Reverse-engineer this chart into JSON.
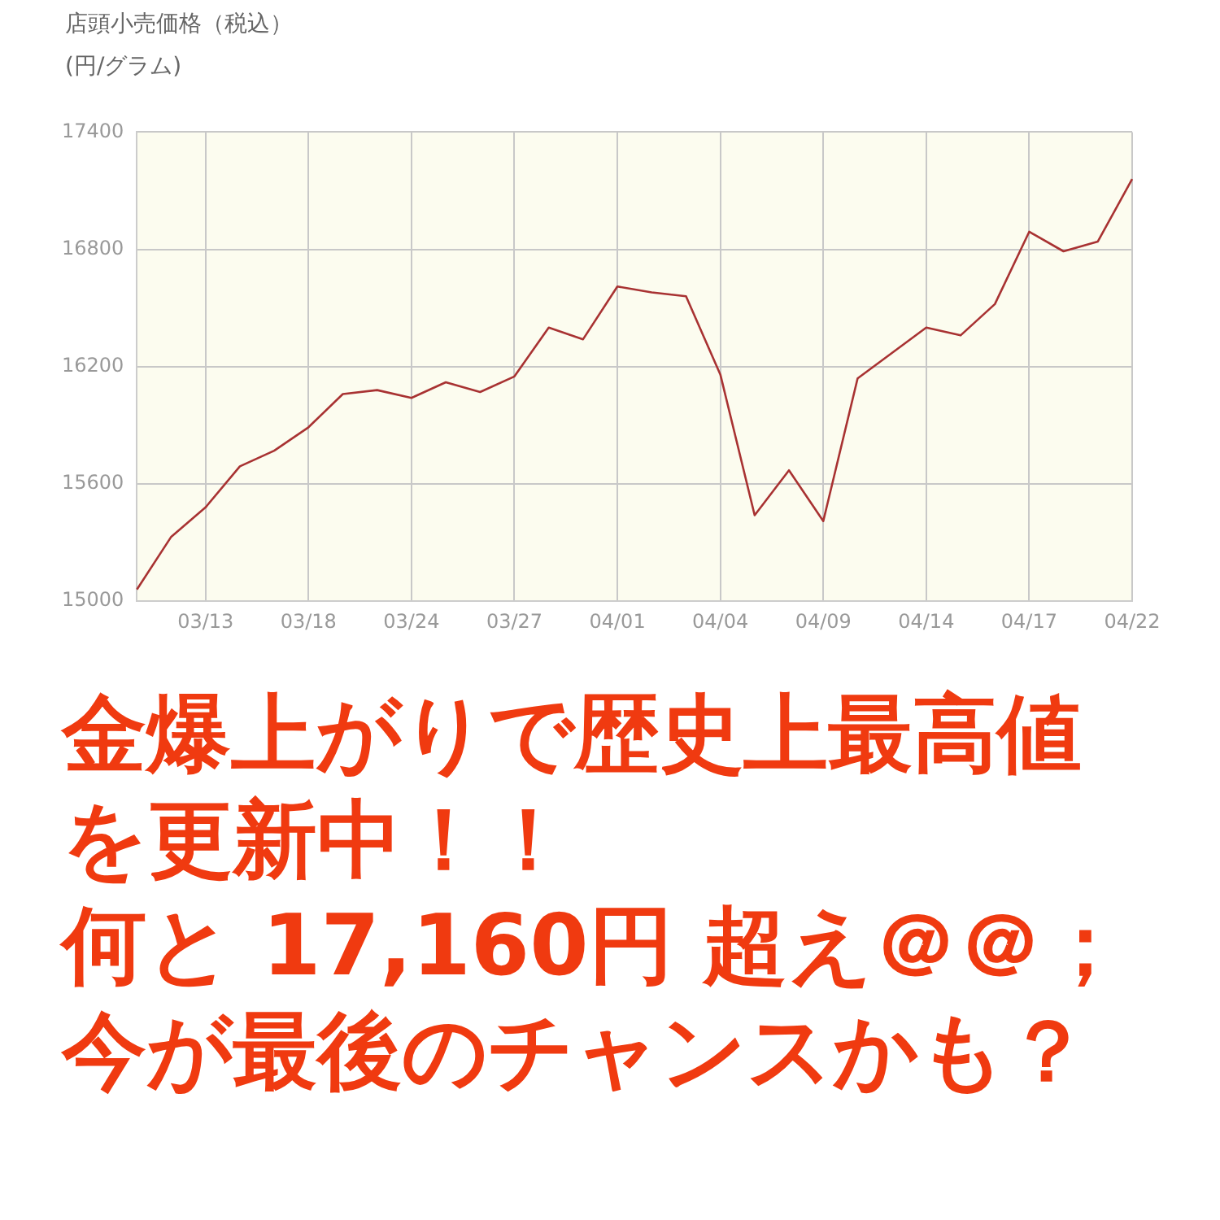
{
  "chart_data": {
    "type": "line",
    "title": "店頭小売価格（税込）",
    "ylabel": "(円/グラム)",
    "categories": [
      null,
      null,
      "03/13",
      null,
      null,
      "03/18",
      null,
      null,
      "03/24",
      null,
      null,
      "03/27",
      null,
      null,
      "04/01",
      null,
      null,
      "04/04",
      null,
      null,
      "04/09",
      null,
      null,
      "04/14",
      null,
      null,
      "04/17",
      null,
      null,
      "04/22"
    ],
    "series": [
      {
        "color": "#a83232",
        "values": [
          15060,
          15330,
          15480,
          15690,
          15770,
          15890,
          16060,
          16080,
          16040,
          16120,
          16070,
          16150,
          16400,
          16340,
          16610,
          16580,
          16560,
          16160,
          15440,
          15670,
          15410,
          16140,
          16270,
          16400,
          16360,
          16520,
          16890,
          16790,
          16840,
          17160
        ]
      }
    ],
    "ylim": [
      15000,
      17400
    ],
    "yticks": [
      15000,
      15600,
      16200,
      16800,
      17400
    ],
    "grid": true,
    "marker": "none",
    "annotations": [
      "金爆上がりで歴史上最高値",
      "を更新中！！",
      "何と 17,160円 超え＠＠；",
      "今が最後のチャンスかも？"
    ]
  }
}
